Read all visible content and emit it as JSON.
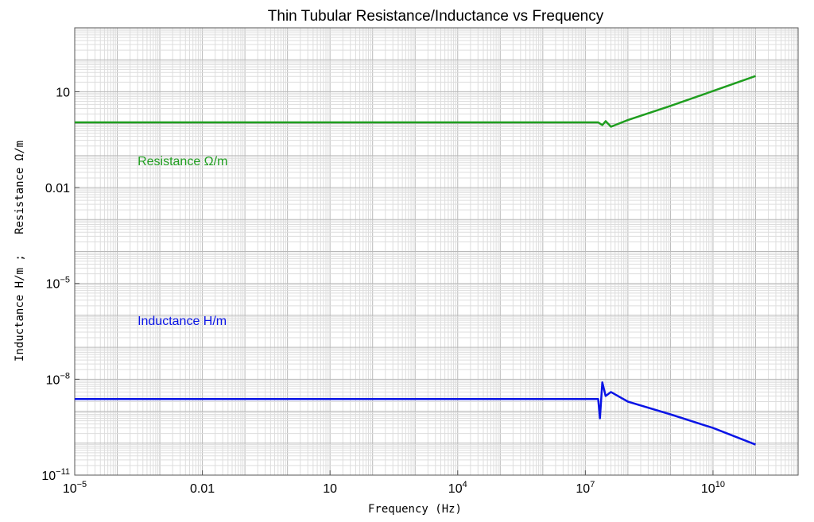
{
  "chart_data": {
    "type": "line",
    "title": "Thin Tubular Resistance/Inductance vs Frequency",
    "xlabel": "Frequency (Hz)",
    "ylabel": "Inductance H/m ;   Resistance Ω/m",
    "x_scale": "log",
    "y_scale": "log",
    "xlim": [
      1e-05,
      1000000000000.0
    ],
    "ylim": [
      1e-11,
      1000
    ],
    "grid": true,
    "x_ticks": [
      {
        "value": 1e-05,
        "base": "10",
        "exp": "−5"
      },
      {
        "value": 0.01,
        "base": "0.01",
        "exp": ""
      },
      {
        "value": 10,
        "base": "10",
        "exp": ""
      },
      {
        "value": 10000,
        "base": "10",
        "exp": "4"
      },
      {
        "value": 10000000,
        "base": "10",
        "exp": "7"
      },
      {
        "value": 10000000000,
        "base": "10",
        "exp": "10"
      }
    ],
    "y_ticks": [
      {
        "value": 10,
        "base": "10",
        "exp": ""
      },
      {
        "value": 0.01,
        "base": "0.01",
        "exp": ""
      },
      {
        "value": 1e-05,
        "base": "10",
        "exp": "−5"
      },
      {
        "value": 1e-08,
        "base": "10",
        "exp": "−8"
      },
      {
        "value": 1e-11,
        "base": "10",
        "exp": "−11"
      }
    ],
    "series": [
      {
        "name": "Resistance Ω/m",
        "color": "#1f9e1f",
        "x": [
          1e-05,
          20000000,
          25000000,
          30000000,
          40000000,
          100000000,
          1000000000,
          10000000000,
          100000000000
        ],
        "y": [
          1.1,
          1.1,
          0.9,
          1.2,
          0.8,
          1.3,
          3.6,
          10.5,
          31
        ]
      },
      {
        "name": "Inductance H/m",
        "color": "#0a14e6",
        "x": [
          1e-05,
          20000000,
          22000000,
          25000000,
          30000000,
          40000000,
          100000000,
          1000000000,
          10000000000,
          100000000000
        ],
        "y": [
          2.4e-09,
          2.4e-09,
          6e-10,
          8e-09,
          3e-09,
          4e-09,
          2e-09,
          8e-10,
          3e-10,
          9e-11
        ]
      }
    ],
    "annotations": [
      {
        "text": "Resistance Ω/m",
        "color": "#1f9e1f",
        "x": 0.0003,
        "y": 0.05
      },
      {
        "text": "Inductance H/m",
        "color": "#0a14e6",
        "x": 0.0003,
        "y": 5e-07
      }
    ]
  }
}
